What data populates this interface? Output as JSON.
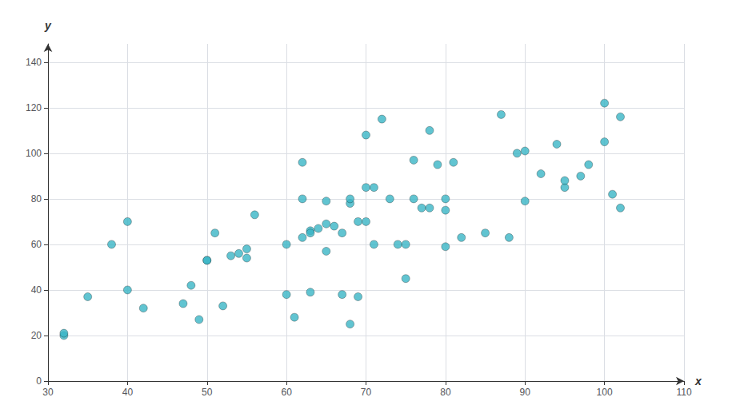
{
  "chart_data": {
    "type": "scatter",
    "x": [
      32,
      32,
      35,
      38,
      40,
      40,
      42,
      47,
      48,
      49,
      50,
      50,
      51,
      52,
      53,
      54,
      55,
      55,
      56,
      60,
      60,
      61,
      62,
      62,
      62,
      63,
      63,
      63,
      64,
      65,
      65,
      65,
      66,
      67,
      67,
      68,
      68,
      68,
      69,
      69,
      70,
      70,
      70,
      71,
      71,
      72,
      73,
      74,
      75,
      75,
      76,
      76,
      77,
      78,
      78,
      79,
      80,
      80,
      80,
      81,
      82,
      85,
      87,
      88,
      89,
      90,
      90,
      92,
      94,
      95,
      95,
      97,
      98,
      100,
      100,
      101,
      102,
      102
    ],
    "y": [
      20,
      21,
      37,
      60,
      40,
      70,
      32,
      34,
      42,
      27,
      53,
      53,
      65,
      33,
      55,
      56,
      54,
      58,
      73,
      60,
      38,
      28,
      96,
      63,
      80,
      66,
      65,
      39,
      67,
      79,
      69,
      57,
      68,
      65,
      38,
      78,
      80,
      25,
      70,
      37,
      108,
      85,
      70,
      85,
      60,
      115,
      80,
      60,
      60,
      45,
      97,
      80,
      76,
      110,
      76,
      95,
      75,
      80,
      59,
      96,
      63,
      65,
      117,
      63,
      100,
      79,
      101,
      91,
      104,
      85,
      88,
      90,
      95,
      105,
      122,
      82,
      116,
      76
    ],
    "color": "#3ab5c6",
    "xlim": [
      30,
      110
    ],
    "ylim": [
      0,
      148
    ],
    "xticks": [
      30,
      40,
      50,
      60,
      70,
      80,
      90,
      100,
      110
    ],
    "yticks": [
      0,
      20,
      40,
      60,
      80,
      100,
      120,
      140
    ],
    "xlabel": "x",
    "ylabel": "y",
    "grid": true
  }
}
